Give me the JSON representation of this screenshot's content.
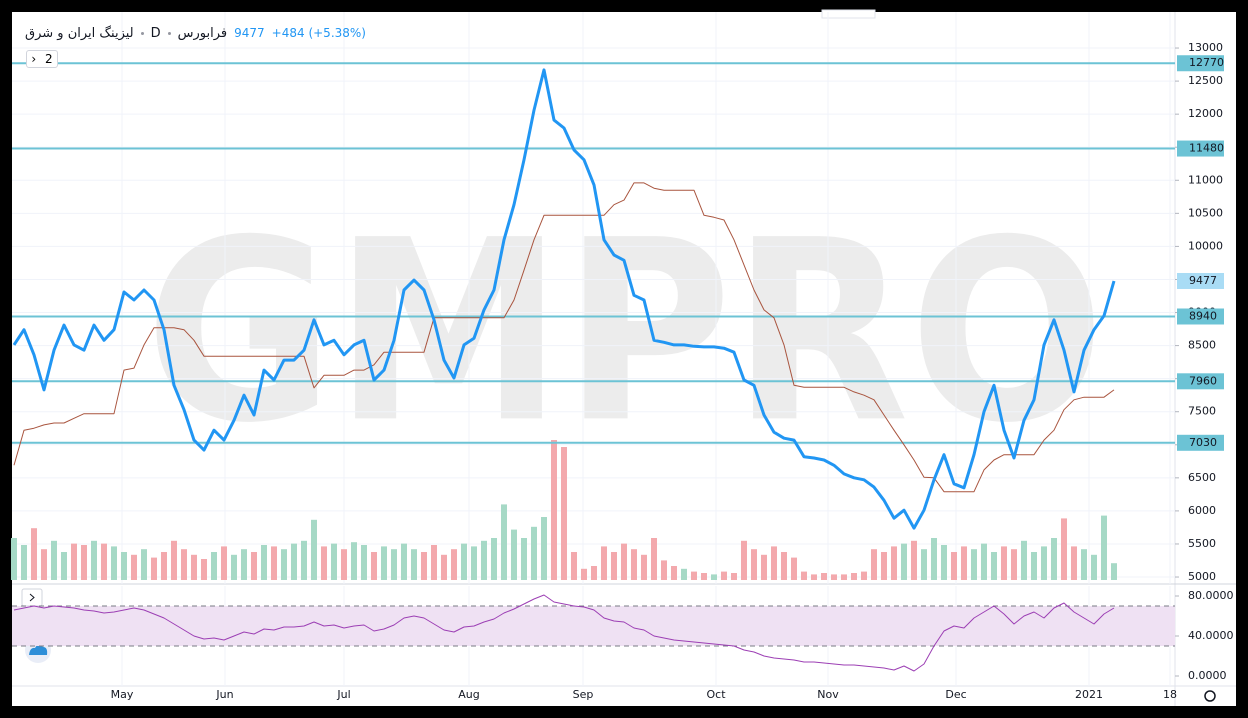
{
  "header": {
    "symbol": "لیزینگ ایران و شرق",
    "interval": "D",
    "exchange": "فرابورس",
    "change": "+484 (+5.38%)",
    "indicators": "2",
    "watermark": "GMPRO"
  },
  "chart_data": [
    {
      "type": "line",
      "xlim": [
        -0.2,
        116.1
      ],
      "xticks": [
        {
          "value": 10.8,
          "label": "May"
        },
        {
          "value": 21.1,
          "label": "Jun"
        },
        {
          "value": 33,
          "label": "Jul"
        },
        {
          "value": 45.5,
          "label": "Aug"
        },
        {
          "value": 56.9,
          "label": "Sep"
        },
        {
          "value": 70.2,
          "label": "Oct"
        },
        {
          "value": 81.4,
          "label": "Nov"
        },
        {
          "value": 94.2,
          "label": "Dec"
        },
        {
          "value": 107.5,
          "label": "2021"
        },
        {
          "value": 115.6,
          "label": "18"
        }
      ],
      "ylim": [
        4955,
        13545
      ],
      "yticks": [
        5000,
        5500,
        6000,
        6500,
        7000,
        7500,
        8000,
        8500,
        9000,
        9500,
        10000,
        10500,
        11000,
        11500,
        12000,
        12500,
        13000
      ],
      "grid": true,
      "levels": [
        12770,
        11480,
        8940,
        7960,
        7030
      ],
      "level_color": "#6cc3d5",
      "series": [
        {
          "color": "#2196f3",
          "values": [
            8510,
            8740,
            8360,
            7830,
            8430,
            8810,
            8510,
            8430,
            8810,
            8580,
            8740,
            9310,
            9190,
            9340,
            9190,
            8740,
            7900,
            7530,
            7070,
            6920,
            7220,
            7070,
            7370,
            7750,
            7450,
            8130,
            7980,
            8280,
            8280,
            8430,
            8890,
            8510,
            8580,
            8360,
            8510,
            8580,
            7980,
            8130,
            8580,
            9340,
            9490,
            9340,
            8890,
            8280,
            8010,
            8510,
            8610,
            9040,
            9340,
            10100,
            10630,
            11310,
            12060,
            12670,
            11910,
            11790,
            11460,
            11310,
            10930,
            10100,
            9870,
            9790,
            9260,
            9190,
            8580,
            8550,
            8510,
            8510,
            8490,
            8480,
            8480,
            8460,
            8400,
            7980,
            7900,
            7450,
            7190,
            7100,
            7070,
            6820,
            6800,
            6770,
            6690,
            6560,
            6500,
            6470,
            6360,
            6160,
            5890,
            6010,
            5740,
            6010,
            6470,
            6850,
            6410,
            6350,
            6850,
            7500,
            7900,
            7220,
            6800,
            7370,
            7680,
            8510,
            8890,
            8430,
            7800,
            8430,
            8740,
            8950,
            9477
          ]
        },
        {
          "color": "#a9553f",
          "values": [
            6690,
            7220,
            7250,
            7300,
            7330,
            7330,
            7400,
            7470,
            7470,
            7470,
            7470,
            8130,
            8160,
            8510,
            8770,
            8770,
            8770,
            8740,
            8580,
            8340,
            8340,
            8340,
            8340,
            8340,
            8340,
            8340,
            8340,
            8340,
            8340,
            8340,
            7860,
            8050,
            8050,
            8050,
            8130,
            8130,
            8210,
            8400,
            8400,
            8400,
            8400,
            8400,
            8920,
            8920,
            8920,
            8920,
            8920,
            8920,
            8920,
            8920,
            9190,
            9640,
            10100,
            10470,
            10470,
            10470,
            10470,
            10470,
            10470,
            10470,
            10630,
            10700,
            10960,
            10960,
            10880,
            10850,
            10850,
            10850,
            10850,
            10470,
            10440,
            10400,
            10100,
            9720,
            9340,
            9040,
            8920,
            8510,
            7900,
            7870,
            7870,
            7870,
            7870,
            7870,
            7800,
            7750,
            7680,
            7450,
            7220,
            7000,
            6770,
            6510,
            6500,
            6290,
            6290,
            6290,
            6290,
            6620,
            6770,
            6850,
            6850,
            6850,
            6850,
            7070,
            7220,
            7530,
            7680,
            7720,
            7720,
            7720,
            7830
          ]
        }
      ],
      "volume": {
        "up_color": "#a6d9c6",
        "down_color": "#f3a9ad",
        "values": [
          30,
          25,
          37,
          22,
          28,
          20,
          26,
          25,
          28,
          26,
          24,
          20,
          18,
          22,
          16,
          20,
          28,
          22,
          18,
          15,
          20,
          24,
          18,
          22,
          20,
          25,
          24,
          22,
          26,
          28,
          43,
          24,
          26,
          22,
          27,
          25,
          20,
          24,
          22,
          26,
          22,
          20,
          25,
          18,
          22,
          26,
          24,
          28,
          30,
          54,
          36,
          30,
          38,
          45,
          100,
          95,
          20,
          8,
          10,
          24,
          20,
          26,
          22,
          18,
          30,
          14,
          10,
          8,
          6,
          5,
          4,
          6,
          5,
          28,
          22,
          18,
          24,
          20,
          16,
          6,
          4,
          5,
          4,
          4,
          5,
          6,
          22,
          20,
          24,
          26,
          28,
          22,
          30,
          25,
          20,
          24,
          22,
          26,
          20,
          24,
          22,
          28,
          20,
          24,
          30,
          44,
          24,
          22,
          18,
          46,
          12
        ]
      }
    },
    {
      "type": "line",
      "ylim": [
        -9,
        88
      ],
      "yticks": [
        {
          "value": 0,
          "label": "0.0000"
        },
        {
          "value": 40,
          "label": "40.0000"
        },
        {
          "value": 80,
          "label": "80.0000"
        }
      ],
      "band": [
        30,
        70
      ],
      "band_color": "#efe1f3",
      "series": [
        {
          "color": "#9c3fb4",
          "values": [
            66,
            68,
            70,
            68,
            70,
            69,
            68,
            66,
            65,
            63,
            64,
            66,
            68,
            66,
            62,
            58,
            52,
            46,
            40,
            37,
            38,
            36,
            40,
            44,
            42,
            47,
            46,
            49,
            49,
            50,
            54,
            50,
            51,
            48,
            50,
            51,
            45,
            47,
            51,
            58,
            60,
            58,
            52,
            46,
            44,
            49,
            50,
            54,
            57,
            63,
            67,
            72,
            77,
            81,
            74,
            72,
            70,
            69,
            66,
            58,
            55,
            54,
            48,
            46,
            40,
            38,
            36,
            35,
            34,
            33,
            32,
            31,
            30,
            26,
            24,
            20,
            18,
            17,
            16,
            14,
            14,
            13,
            12,
            11,
            11,
            10,
            9,
            8,
            6,
            10,
            5,
            12,
            30,
            45,
            50,
            48,
            58,
            64,
            70,
            62,
            52,
            60,
            64,
            58,
            68,
            73,
            64,
            58,
            52,
            62,
            68
          ]
        }
      ]
    }
  ]
}
